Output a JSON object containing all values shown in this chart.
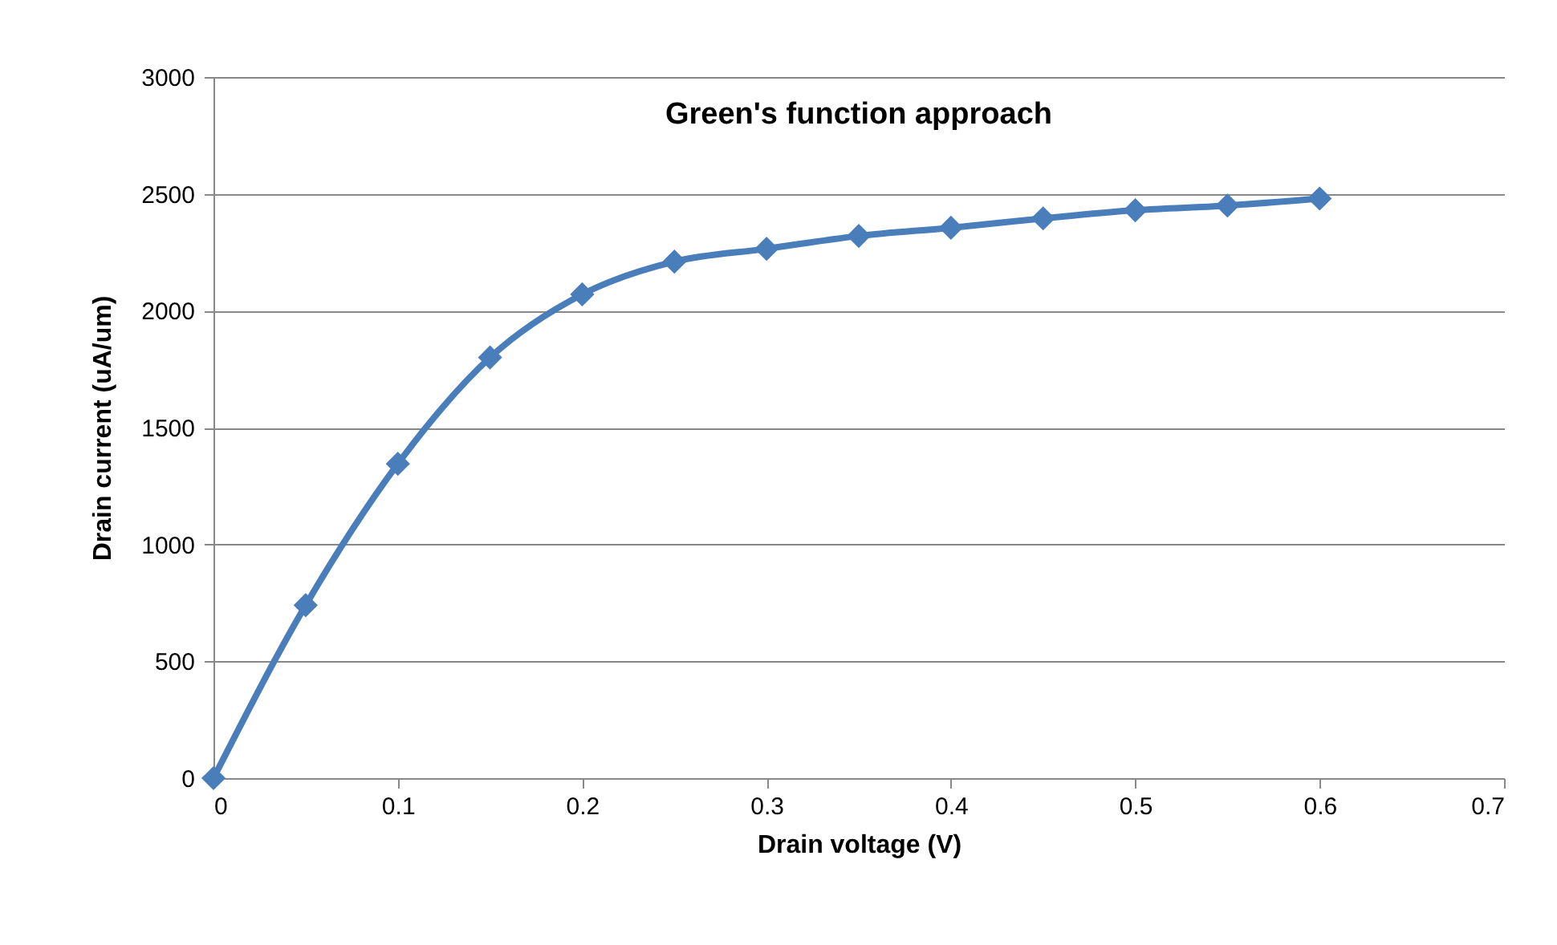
{
  "chart_data": {
    "type": "line",
    "title": "Green's function approach",
    "xlabel": "Drain voltage (V)",
    "ylabel": "Drain current (uA/um)",
    "x": [
      0,
      0.05,
      0.1,
      0.15,
      0.2,
      0.25,
      0.3,
      0.35,
      0.4,
      0.45,
      0.5,
      0.55,
      0.6
    ],
    "series": [
      {
        "color": "#4a7ebb",
        "values": [
          0,
          740,
          1345,
          1800,
          2070,
          2210,
          2265,
          2320,
          2355,
          2395,
          2430,
          2450,
          2480
        ]
      }
    ],
    "xlim": [
      0,
      0.7
    ],
    "xticks": [
      0,
      0.1,
      0.2,
      0.3,
      0.4,
      0.5,
      0.6,
      0.7
    ],
    "ylim": [
      0,
      3000
    ],
    "yticks": [
      0,
      500,
      1000,
      1500,
      2000,
      2500,
      3000
    ],
    "grid": "y",
    "marker": "diamond",
    "line_style": "solid"
  }
}
